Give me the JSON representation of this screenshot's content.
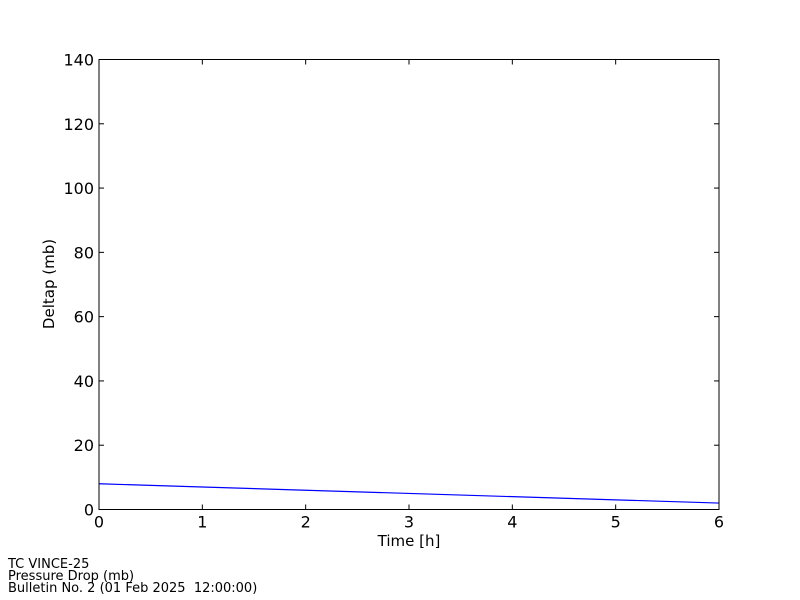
{
  "chart_data": {
    "type": "line",
    "title": "",
    "xlabel": "Time [h]",
    "ylabel": "Deltap (mb)",
    "xlim": [
      0,
      6
    ],
    "ylim": [
      0,
      140
    ],
    "xticks": [
      "0",
      "1",
      "2",
      "3",
      "4",
      "5",
      "6"
    ],
    "yticks": [
      "0",
      "20",
      "40",
      "60",
      "80",
      "100",
      "120",
      "140"
    ],
    "grid": false,
    "series": [
      {
        "color": "#0000ff",
        "x": [
          0,
          1,
          2,
          3,
          4,
          5,
          6
        ],
        "y": [
          8,
          7,
          6,
          5,
          4,
          3,
          2
        ]
      }
    ]
  },
  "footer": {
    "line1": "TC VINCE-25",
    "line2": "Pressure Drop (mb)",
    "line3": "Bulletin No. 2 (01 Feb 2025  12:00:00)"
  }
}
